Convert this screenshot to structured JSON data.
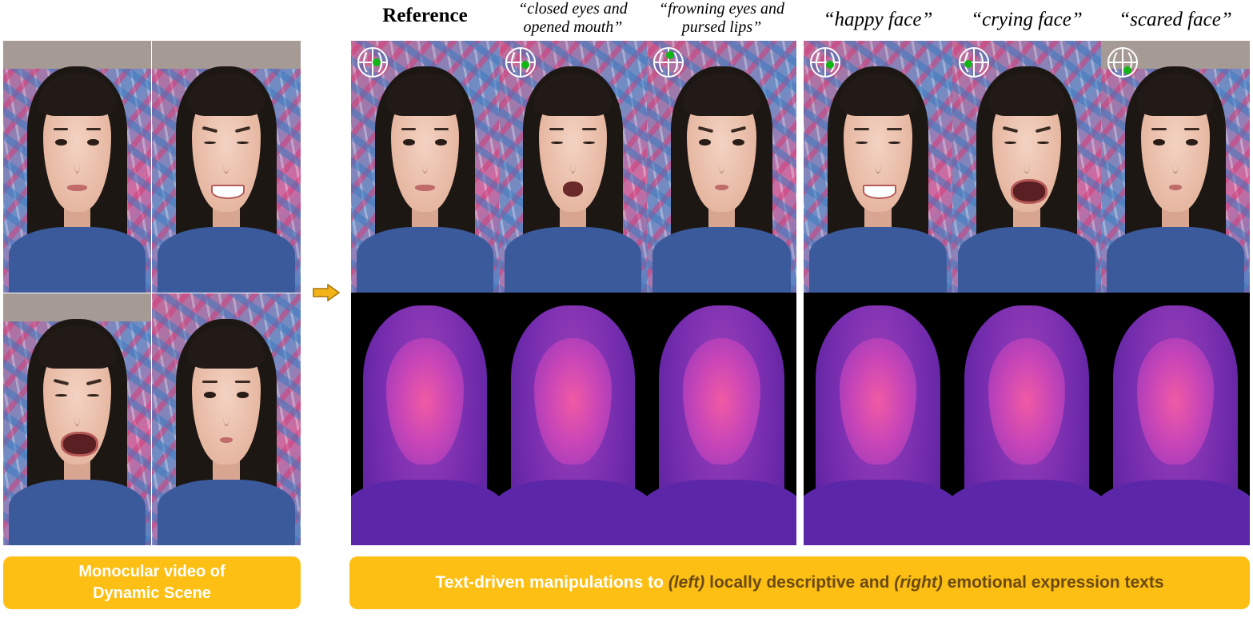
{
  "left_panel": {
    "caption_line1": "Monocular video of",
    "caption_line2": "Dynamic Scene",
    "frames": [
      {
        "expression": "neutral"
      },
      {
        "expression": "grin"
      },
      {
        "expression": "scream"
      },
      {
        "expression": "pout"
      }
    ]
  },
  "columns": [
    {
      "caption": "Reference",
      "kind": "reference"
    },
    {
      "caption_line1": "“closed eyes and",
      "caption_line2": "opened mouth”",
      "kind": "local"
    },
    {
      "caption_line1": "“frowning eyes and",
      "caption_line2": "pursed lips”",
      "kind": "local"
    },
    {
      "caption": "“happy face”",
      "kind": "emotion"
    },
    {
      "caption": "“crying face”",
      "kind": "emotion"
    },
    {
      "caption": "“scared face”",
      "kind": "emotion"
    }
  ],
  "right_banner": {
    "part1": "Text-driven manipulations to ",
    "part2": "(left)",
    "part3": " locally descriptive and ",
    "part4": "(right)",
    "part5": " emotional expression texts"
  },
  "colors": {
    "banner": "#fdbf13",
    "gizmo_dot": "#12b516",
    "density_face": "#ff5fa0",
    "density_hair": "#7a2fb0"
  },
  "icons": {
    "arrow": "right-arrow-icon",
    "gizmo": "orientation-gizmo-icon"
  }
}
